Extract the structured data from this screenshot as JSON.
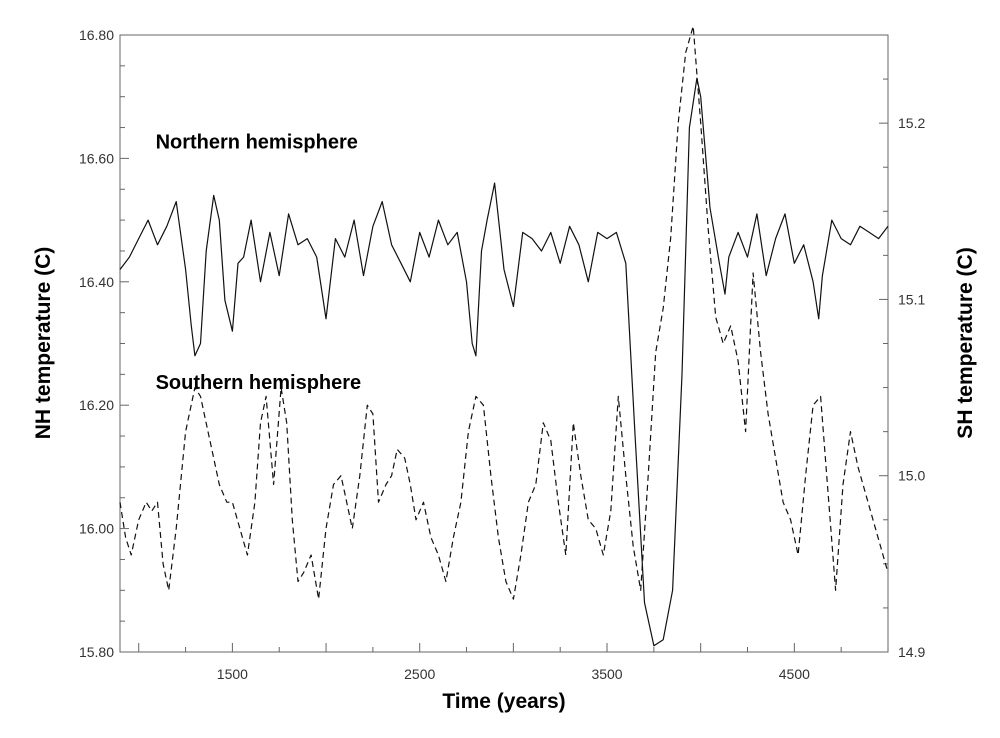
{
  "chart_data": {
    "type": "line",
    "xlabel": "Time (years)",
    "ylabel_left": "NH temperature (C)",
    "ylabel_right": "SH temperature (C)",
    "xlim": [
      900,
      5000
    ],
    "ylim_left": [
      15.8,
      16.8
    ],
    "ylim_right": [
      14.9,
      15.25
    ],
    "x_ticks": [
      1500,
      2500,
      3500,
      4500
    ],
    "x_tick_labels": [
      "1500",
      "2500",
      "3500",
      "4500"
    ],
    "y_left_ticks": [
      15.8,
      16.0,
      16.2,
      16.4,
      16.6,
      16.8
    ],
    "y_left_tick_labels": [
      "15.80",
      "16.00",
      "16.20",
      "16.40",
      "16.60",
      "16.80"
    ],
    "y_right_ticks": [
      14.9,
      15.0,
      15.1,
      15.2
    ],
    "y_right_tick_labels": [
      "14.9",
      "15.0",
      "15.1",
      "15.2"
    ],
    "grid": false,
    "annotations": [
      {
        "text": "Northern hemisphere",
        "x": 1090,
        "y_left": 16.6
      },
      {
        "text": "Southern hemisphere",
        "x": 1090,
        "y_left": 16.21
      }
    ],
    "series": [
      {
        "name": "Northern hemisphere",
        "axis": "left",
        "style": "solid",
        "x": [
          900,
          950,
          1000,
          1050,
          1100,
          1150,
          1200,
          1250,
          1280,
          1300,
          1330,
          1360,
          1400,
          1430,
          1460,
          1500,
          1530,
          1560,
          1600,
          1650,
          1700,
          1750,
          1800,
          1850,
          1900,
          1950,
          1980,
          2000,
          2050,
          2100,
          2150,
          2200,
          2250,
          2300,
          2350,
          2400,
          2450,
          2500,
          2550,
          2600,
          2650,
          2700,
          2750,
          2780,
          2800,
          2830,
          2860,
          2900,
          2950,
          3000,
          3050,
          3100,
          3150,
          3200,
          3250,
          3300,
          3350,
          3400,
          3450,
          3500,
          3550,
          3600,
          3650,
          3700,
          3750,
          3800,
          3850,
          3900,
          3940,
          3980,
          4000,
          4050,
          4100,
          4130,
          4150,
          4200,
          4250,
          4300,
          4350,
          4400,
          4450,
          4500,
          4550,
          4600,
          4630,
          4650,
          4700,
          4750,
          4800,
          4850,
          4900,
          4950,
          5000
        ],
        "values": [
          16.42,
          16.44,
          16.47,
          16.5,
          16.46,
          16.49,
          16.53,
          16.42,
          16.33,
          16.28,
          16.3,
          16.45,
          16.54,
          16.5,
          16.37,
          16.32,
          16.43,
          16.44,
          16.5,
          16.4,
          16.48,
          16.41,
          16.51,
          16.46,
          16.47,
          16.44,
          16.38,
          16.34,
          16.47,
          16.44,
          16.5,
          16.41,
          16.49,
          16.53,
          16.46,
          16.43,
          16.4,
          16.48,
          16.44,
          16.5,
          16.46,
          16.48,
          16.4,
          16.3,
          16.28,
          16.45,
          16.5,
          16.56,
          16.42,
          16.36,
          16.48,
          16.47,
          16.45,
          16.48,
          16.43,
          16.49,
          16.46,
          16.4,
          16.48,
          16.47,
          16.48,
          16.43,
          16.15,
          15.88,
          15.81,
          15.82,
          15.9,
          16.25,
          16.65,
          16.73,
          16.7,
          16.52,
          16.43,
          16.38,
          16.44,
          16.48,
          16.44,
          16.51,
          16.41,
          16.47,
          16.51,
          16.43,
          16.46,
          16.4,
          16.34,
          16.41,
          16.5,
          16.47,
          16.46,
          16.49,
          16.48,
          16.47,
          16.49
        ]
      },
      {
        "name": "Southern hemisphere",
        "axis": "right",
        "style": "dashed",
        "x": [
          900,
          930,
          960,
          1000,
          1040,
          1070,
          1100,
          1130,
          1160,
          1200,
          1250,
          1300,
          1330,
          1370,
          1400,
          1430,
          1470,
          1500,
          1540,
          1580,
          1620,
          1650,
          1680,
          1720,
          1760,
          1790,
          1820,
          1850,
          1880,
          1920,
          1960,
          2000,
          2040,
          2080,
          2100,
          2140,
          2180,
          2220,
          2250,
          2280,
          2320,
          2350,
          2380,
          2420,
          2450,
          2480,
          2520,
          2560,
          2600,
          2640,
          2680,
          2720,
          2760,
          2800,
          2840,
          2880,
          2920,
          2960,
          3000,
          3040,
          3080,
          3120,
          3160,
          3200,
          3240,
          3280,
          3320,
          3360,
          3400,
          3440,
          3480,
          3520,
          3560,
          3600,
          3640,
          3680,
          3720,
          3760,
          3800,
          3840,
          3880,
          3920,
          3960,
          4000,
          4040,
          4080,
          4120,
          4160,
          4200,
          4240,
          4280,
          4320,
          4360,
          4400,
          4440,
          4480,
          4520,
          4560,
          4600,
          4640,
          4680,
          4720,
          4760,
          4800,
          4840,
          4880,
          4920,
          4960,
          5000
        ],
        "values": [
          14.985,
          14.965,
          14.955,
          14.975,
          14.985,
          14.98,
          14.985,
          14.95,
          14.935,
          14.97,
          15.025,
          15.05,
          15.045,
          15.025,
          15.01,
          14.995,
          14.985,
          14.985,
          14.97,
          14.955,
          14.985,
          15.03,
          15.045,
          14.995,
          15.05,
          15.03,
          14.975,
          14.94,
          14.945,
          14.955,
          14.93,
          14.97,
          14.995,
          15.0,
          14.99,
          14.97,
          15.0,
          15.04,
          15.035,
          14.985,
          14.995,
          15.0,
          15.015,
          15.01,
          14.995,
          14.975,
          14.985,
          14.965,
          14.955,
          14.94,
          14.965,
          14.985,
          15.025,
          15.045,
          15.04,
          15.0,
          14.965,
          14.94,
          14.93,
          14.955,
          14.985,
          14.995,
          15.03,
          15.02,
          14.985,
          14.955,
          15.03,
          15.0,
          14.975,
          14.97,
          14.955,
          14.98,
          15.045,
          15.0,
          14.96,
          14.935,
          15.0,
          15.07,
          15.095,
          15.135,
          15.2,
          15.24,
          15.255,
          15.2,
          15.14,
          15.09,
          15.075,
          15.085,
          15.065,
          15.025,
          15.115,
          15.07,
          15.035,
          15.01,
          14.985,
          14.975,
          14.955,
          15.0,
          15.04,
          15.045,
          14.99,
          14.935,
          14.995,
          15.025,
          15.005,
          14.99,
          14.975,
          14.96,
          14.945
        ]
      }
    ]
  }
}
